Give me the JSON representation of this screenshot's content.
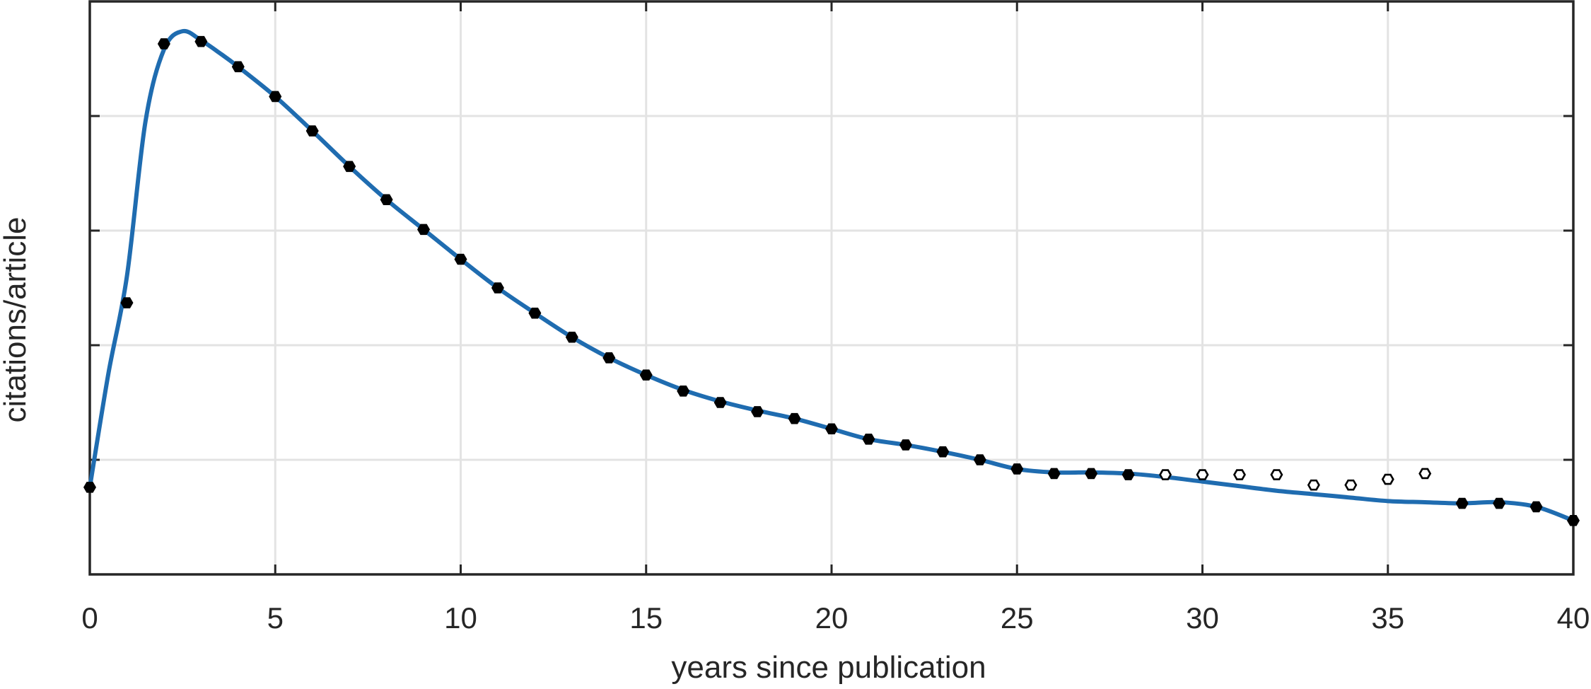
{
  "chart_data": {
    "type": "line",
    "title": "",
    "xlabel": "years since publication",
    "ylabel": "citations/article",
    "xlim": [
      0,
      40
    ],
    "ylim": [
      -1,
      4
    ],
    "x_ticks": [
      0,
      5,
      10,
      15,
      20,
      25,
      30,
      35,
      40
    ],
    "y_grid": [
      0,
      1,
      2,
      3
    ],
    "y_tick_labels_shown": false,
    "grid": true,
    "legend": "none",
    "colors": {
      "fit_line": "#1f6cb0",
      "marker_edge": "#000000",
      "grid": "#e3e3e3",
      "axes": "#262626"
    },
    "series": [
      {
        "kind": "markers-filled",
        "x": [
          0,
          1,
          2,
          3,
          4,
          5,
          6,
          7,
          8,
          9,
          10,
          11,
          12,
          13,
          14,
          15,
          16,
          17,
          18,
          19,
          20,
          21,
          22,
          23,
          24,
          25,
          26,
          27,
          28,
          37,
          38,
          39,
          40
        ],
        "y": [
          -0.24,
          1.37,
          3.63,
          3.65,
          3.43,
          3.17,
          2.87,
          2.56,
          2.27,
          2.01,
          1.75,
          1.5,
          1.28,
          1.07,
          0.89,
          0.74,
          0.6,
          0.5,
          0.42,
          0.36,
          0.27,
          0.18,
          0.13,
          0.07,
          0.0,
          -0.08,
          -0.12,
          -0.12,
          -0.13,
          -0.38,
          -0.38,
          -0.41,
          -0.53
        ]
      },
      {
        "kind": "markers-open",
        "x": [
          29,
          30,
          31,
          32,
          33,
          34,
          35,
          36
        ],
        "y": [
          -0.13,
          -0.13,
          -0.13,
          -0.13,
          -0.22,
          -0.22,
          -0.17,
          -0.12
        ]
      },
      {
        "kind": "fit-curve",
        "x": [
          0,
          0.5,
          1,
          1.5,
          2,
          2.5,
          3,
          3.5,
          4,
          5,
          6,
          7,
          8,
          9,
          10,
          11,
          12,
          13,
          14,
          15,
          16,
          17,
          18,
          19,
          20,
          21,
          22,
          23,
          24,
          25,
          26,
          27,
          28,
          29,
          30,
          31,
          32,
          33,
          34,
          35,
          36,
          37,
          38,
          39,
          40
        ],
        "y": [
          -0.24,
          0.75,
          1.6,
          2.95,
          3.58,
          3.74,
          3.66,
          3.55,
          3.43,
          3.17,
          2.87,
          2.56,
          2.27,
          2.01,
          1.75,
          1.5,
          1.28,
          1.07,
          0.89,
          0.74,
          0.61,
          0.51,
          0.43,
          0.36,
          0.27,
          0.18,
          0.13,
          0.07,
          0.0,
          -0.08,
          -0.11,
          -0.11,
          -0.12,
          -0.15,
          -0.19,
          -0.23,
          -0.27,
          -0.3,
          -0.33,
          -0.36,
          -0.37,
          -0.38,
          -0.37,
          -0.41,
          -0.53
        ]
      }
    ]
  }
}
